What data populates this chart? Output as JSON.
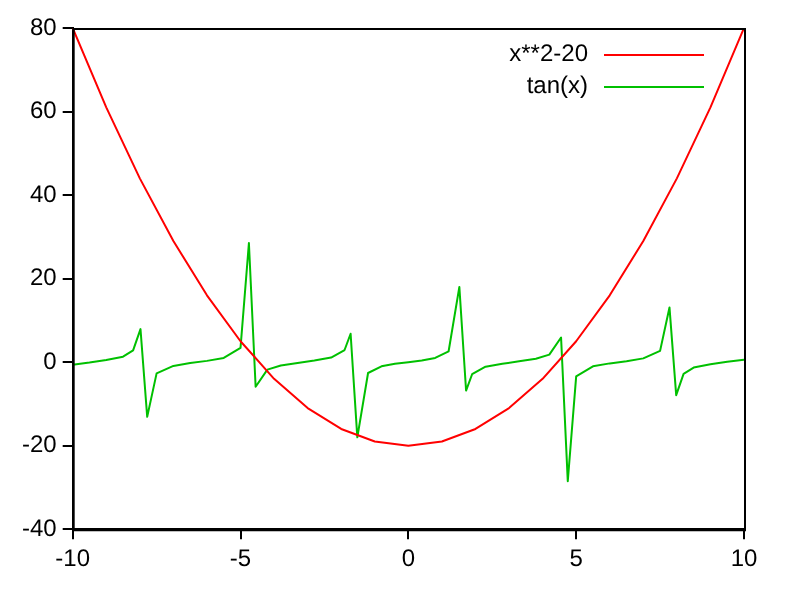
{
  "chart_data": {
    "type": "line",
    "xlim": [
      -10,
      10
    ],
    "xticks": [
      -10,
      -5,
      0,
      5,
      10
    ],
    "ylim": [
      -40,
      80
    ],
    "yticks": [
      -40,
      -20,
      0,
      20,
      40,
      60,
      80
    ],
    "grid": false,
    "legend": "top right",
    "marker": "none",
    "line_style": "solid",
    "series": [
      {
        "name": "x**2-20",
        "color": "#ff0000",
        "x": [
          -10,
          -9,
          -8,
          -7,
          -6,
          -5,
          -4,
          -3,
          -2,
          -1,
          0,
          1,
          2,
          3,
          4,
          5,
          6,
          7,
          8,
          9,
          10
        ],
        "values": [
          80,
          61,
          44,
          29,
          16,
          5,
          -4,
          -11,
          -16,
          -19,
          -20,
          -19,
          -16,
          -11,
          -4,
          5,
          16,
          29,
          44,
          61,
          80
        ]
      },
      {
        "name": "tan(x)",
        "color": "#00c000",
        "x": [
          -10,
          -9.5,
          -9,
          -8.5,
          -8.2,
          -7.98,
          -7.78,
          -7.5,
          -7,
          -6.5,
          -6,
          -5.5,
          -5,
          -4.75,
          -4.55,
          -4.2,
          -3.8,
          -3.3,
          -2.8,
          -2.3,
          -1.9,
          -1.72,
          -1.52,
          -1.2,
          -0.8,
          -0.4,
          0,
          0.4,
          0.8,
          1.2,
          1.52,
          1.72,
          1.9,
          2.3,
          2.8,
          3.3,
          3.8,
          4.2,
          4.55,
          4.75,
          5,
          5.5,
          6,
          6.5,
          7,
          7.5,
          7.78,
          7.98,
          8.2,
          8.5,
          9,
          9.5,
          10
        ],
        "values": [
          -0.6,
          -0.1,
          0.5,
          1.3,
          2.8,
          7.9,
          -13.1,
          -2.7,
          -0.9,
          -0.2,
          0.3,
          1,
          3.4,
          28.5,
          -5.9,
          -1.8,
          -0.8,
          -0.2,
          0.4,
          1.1,
          2.9,
          6.8,
          -18,
          -2.6,
          -1,
          -0.4,
          0,
          0.4,
          1,
          2.6,
          18,
          -6.8,
          -2.9,
          -1.1,
          -0.4,
          0.2,
          0.8,
          1.8,
          5.9,
          -28.5,
          -3.4,
          -1,
          -0.3,
          0.2,
          0.9,
          2.7,
          13.1,
          -7.9,
          -2.8,
          -1.3,
          -0.5,
          0.1,
          0.6
        ]
      }
    ]
  }
}
